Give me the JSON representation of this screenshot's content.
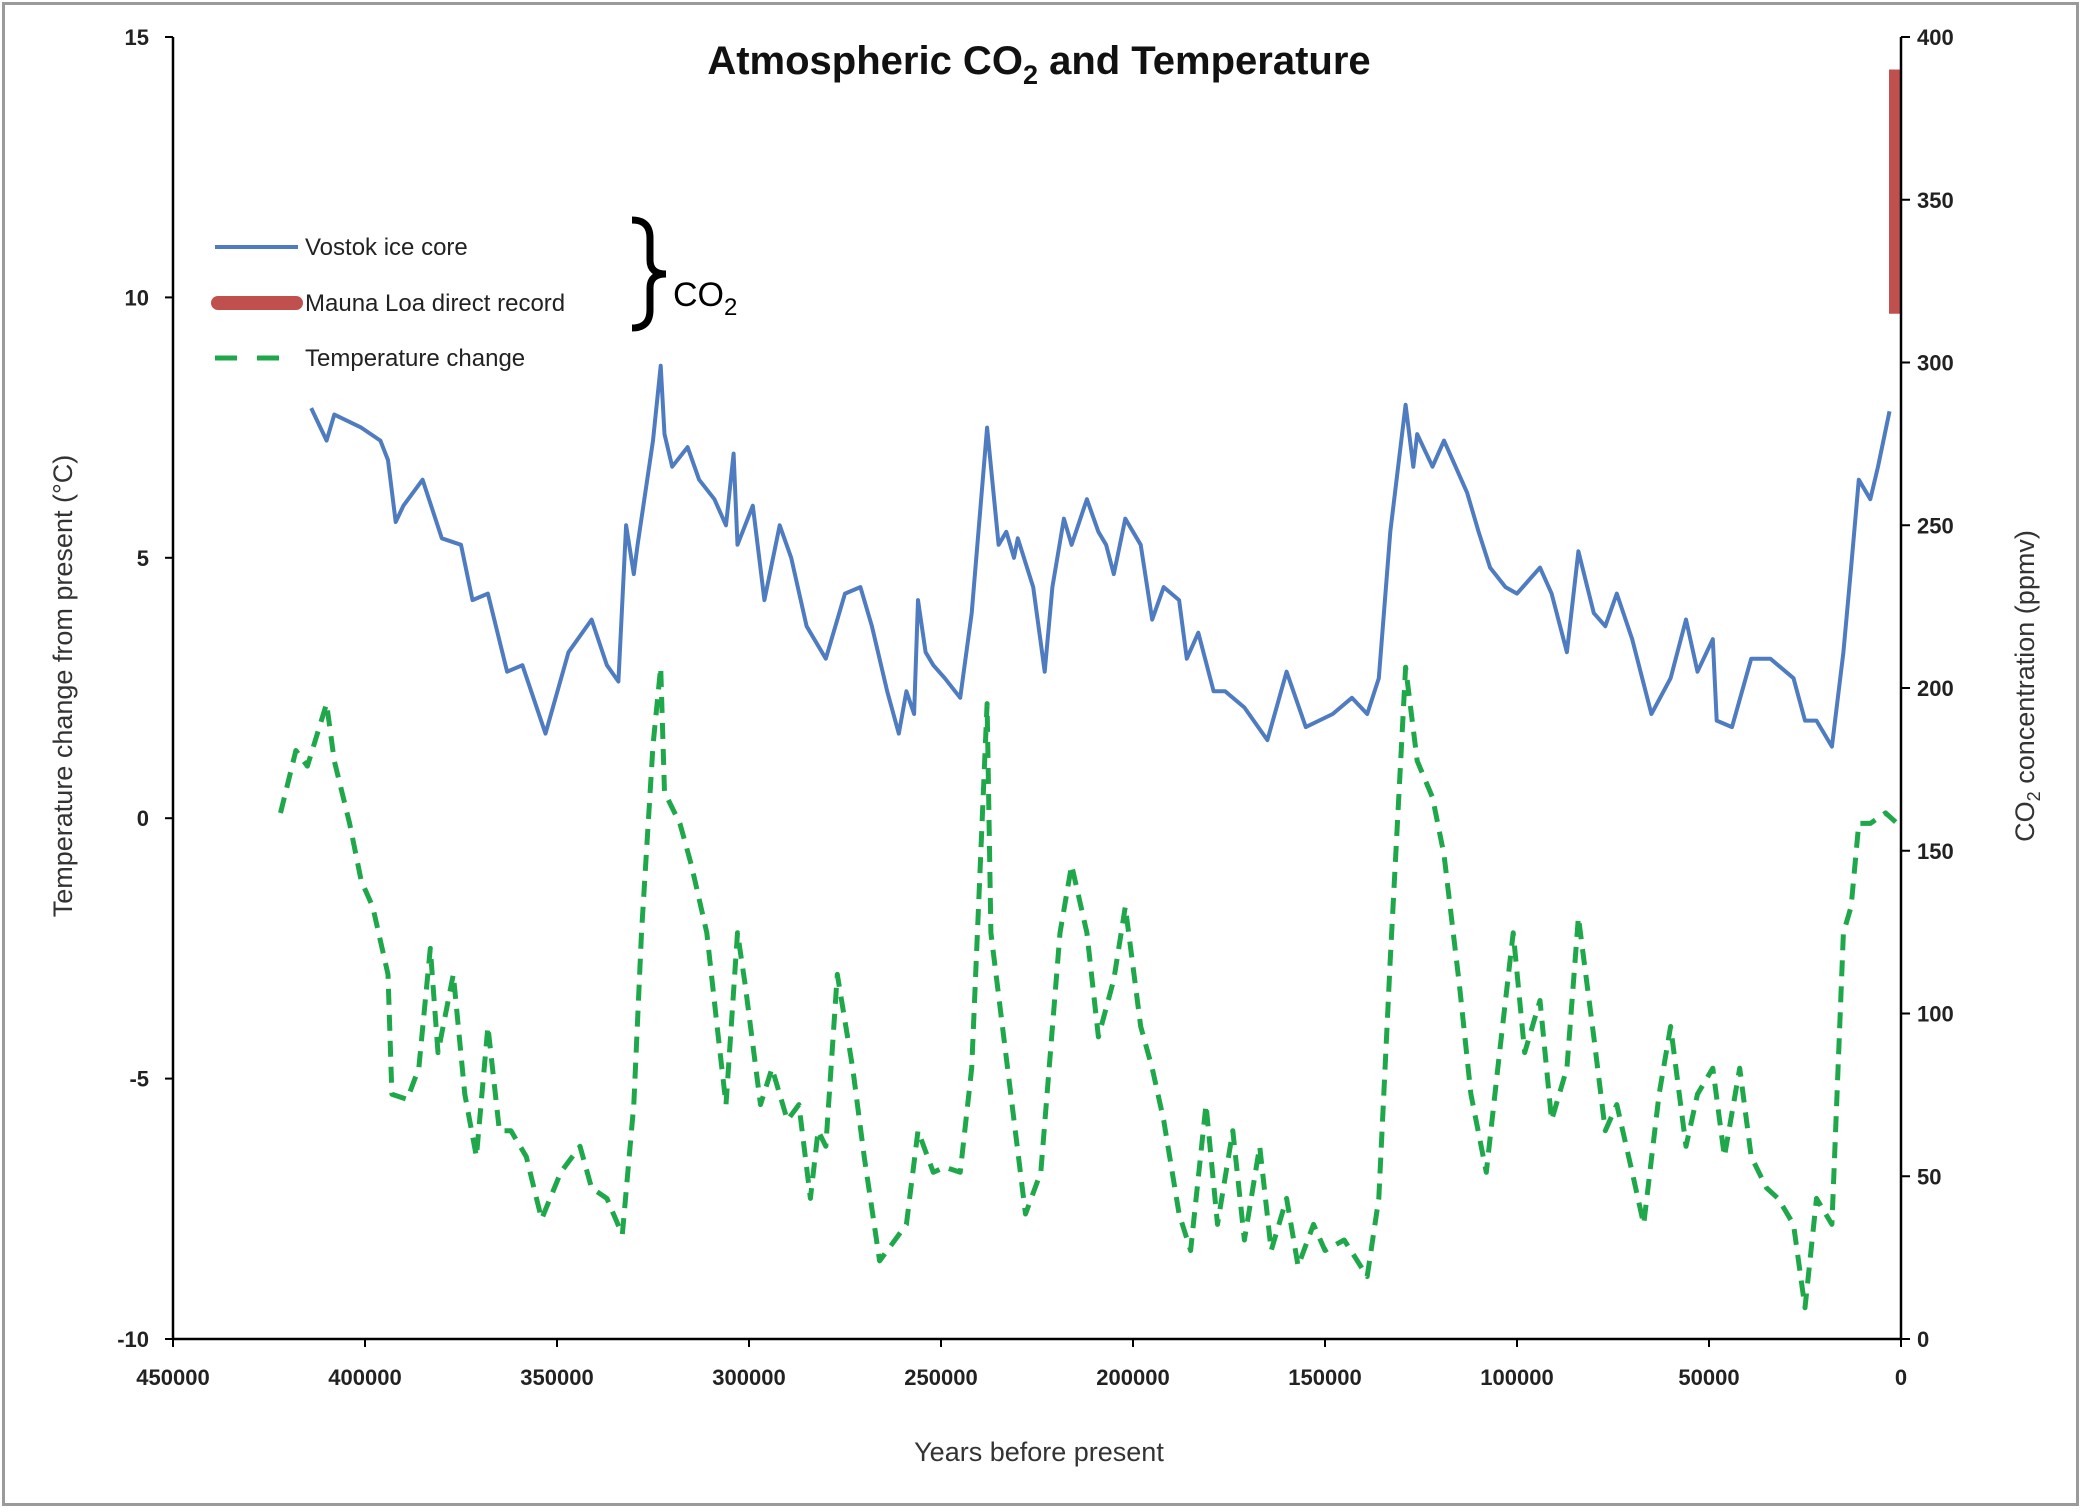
{
  "chart_data": {
    "type": "line",
    "title": "Atmospheric CO2 and Temperature",
    "title_main": "Atmospheric CO",
    "title_sub": "2",
    "title_rest": " and Temperature",
    "xlabel": "Years before present",
    "ylabel_left": "Temperature change from present (°C)",
    "ylabel_right": "CO2 concentration (ppmv)",
    "ylabel_right_parts": [
      "CO",
      "2",
      " concentration (ppmv)"
    ],
    "xlim": [
      450000,
      0
    ],
    "x_reversed": true,
    "ylim_left": [
      -10,
      15
    ],
    "ylim_right": [
      0,
      400
    ],
    "x_ticks": [
      "450000",
      "400000",
      "350000",
      "300000",
      "250000",
      "200000",
      "150000",
      "100000",
      "50000",
      "0"
    ],
    "y_left_ticks": [
      "-10",
      "-5",
      "0",
      "5",
      "10",
      "15"
    ],
    "y_right_ticks": [
      "0",
      "50",
      "100",
      "150",
      "200",
      "250",
      "300",
      "350",
      "400"
    ],
    "grid": false,
    "legend_placement": "top-left",
    "brace_label": [
      "CO",
      "2"
    ],
    "series": [
      {
        "name": "Vostok ice core",
        "axis": "right",
        "color": "#4f7cc0",
        "style": "solid",
        "x": [
          414000,
          410000,
          408000,
          401000,
          396000,
          394000,
          392000,
          390000,
          385000,
          380000,
          375000,
          372000,
          368000,
          363000,
          359000,
          353000,
          347000,
          341000,
          337000,
          334000,
          332000,
          330000,
          329000,
          325000,
          323000,
          322000,
          320000,
          316000,
          313000,
          309000,
          306000,
          304000,
          303000,
          299000,
          296000,
          292000,
          289000,
          285000,
          280000,
          275000,
          271000,
          268000,
          264000,
          261000,
          259000,
          257000,
          256000,
          254000,
          252000,
          249000,
          245000,
          242000,
          238000,
          235000,
          233000,
          231000,
          230000,
          226000,
          223000,
          221000,
          218000,
          216000,
          212000,
          209000,
          207000,
          205000,
          202000,
          198000,
          195000,
          192000,
          188000,
          186000,
          183000,
          179000,
          176000,
          171000,
          165000,
          160000,
          155000,
          148000,
          143000,
          139000,
          136000,
          133000,
          129000,
          127000,
          126000,
          122000,
          119000,
          113000,
          110000,
          107000,
          103000,
          100000,
          94000,
          91000,
          87000,
          84000,
          80000,
          77000,
          74000,
          70000,
          65000,
          60000,
          56000,
          53000,
          49000,
          48000,
          44000,
          39000,
          34000,
          28000,
          25000,
          22000,
          18000,
          15000,
          13000,
          11000,
          8000,
          6000,
          3000
        ],
        "y": [
          286,
          276,
          284,
          280,
          276,
          270,
          251,
          256,
          264,
          246,
          244,
          227,
          229,
          205,
          207,
          186,
          211,
          221,
          207,
          202,
          250,
          235,
          244,
          276,
          299,
          278,
          268,
          274,
          264,
          258,
          250,
          272,
          244,
          256,
          227,
          250,
          240,
          219,
          209,
          229,
          231,
          219,
          199,
          186,
          199,
          192,
          227,
          211,
          207,
          203,
          197,
          223,
          280,
          244,
          248,
          240,
          246,
          231,
          205,
          231,
          252,
          244,
          258,
          248,
          244,
          235,
          252,
          244,
          221,
          231,
          227,
          209,
          217,
          199,
          199,
          194,
          184,
          205,
          188,
          192,
          197,
          192,
          203,
          248,
          287,
          268,
          278,
          268,
          276,
          260,
          248,
          237,
          231,
          229,
          237,
          229,
          211,
          242,
          223,
          219,
          229,
          215,
          192,
          203,
          221,
          205,
          215,
          190,
          188,
          209,
          209,
          203,
          190,
          190,
          182,
          211,
          237,
          264,
          258,
          268,
          285
        ]
      },
      {
        "name": "Mauna Loa direct record",
        "axis": "right",
        "color": "#c0504d",
        "style": "thick",
        "x": [
          0,
          0
        ],
        "y": [
          315,
          390
        ]
      },
      {
        "name": "Temperature change",
        "axis": "left",
        "color": "#1fa84a",
        "style": "dashed",
        "x": [
          422000,
          418000,
          415000,
          410000,
          408000,
          404000,
          401000,
          398000,
          394000,
          393000,
          389000,
          386000,
          383000,
          381000,
          377000,
          374000,
          371000,
          368000,
          365000,
          362000,
          358000,
          354000,
          349000,
          344000,
          341000,
          337000,
          333000,
          330000,
          328000,
          325000,
          323000,
          322000,
          318000,
          315000,
          311000,
          308000,
          306000,
          303000,
          301000,
          297000,
          294000,
          290000,
          287000,
          284000,
          282000,
          280000,
          277000,
          273000,
          270000,
          266000,
          263000,
          259000,
          256000,
          252000,
          249000,
          245000,
          242000,
          238000,
          237000,
          231000,
          228000,
          224000,
          219000,
          216000,
          212000,
          209000,
          205000,
          202000,
          198000,
          195000,
          192000,
          188000,
          185000,
          181000,
          178000,
          174000,
          171000,
          167000,
          164000,
          160000,
          157000,
          153000,
          150000,
          145000,
          139000,
          136000,
          133000,
          129000,
          126000,
          122000,
          119000,
          115000,
          112000,
          108000,
          105000,
          101000,
          98000,
          94000,
          91000,
          87000,
          84000,
          80000,
          77000,
          74000,
          70000,
          67000,
          63000,
          60000,
          56000,
          53000,
          49000,
          46000,
          42000,
          39000,
          35000,
          32000,
          28000,
          25000,
          22000,
          18000,
          15000,
          13000,
          11000,
          8000,
          4000,
          1000
        ],
        "y": [
          0.1,
          1.3,
          1.0,
          2.2,
          1.1,
          -0.1,
          -1.2,
          -1.7,
          -3.0,
          -5.3,
          -5.4,
          -4.8,
          -2.5,
          -4.5,
          -3.0,
          -5.3,
          -6.5,
          -4.0,
          -6.0,
          -6.0,
          -6.5,
          -7.7,
          -6.8,
          -6.3,
          -7.1,
          -7.3,
          -8.0,
          -5.5,
          -2.2,
          1.4,
          2.9,
          0.5,
          -0.1,
          -0.9,
          -2.2,
          -4.2,
          -5.5,
          -2.2,
          -3.2,
          -5.5,
          -4.8,
          -5.8,
          -5.5,
          -7.3,
          -6.0,
          -6.3,
          -3.0,
          -4.8,
          -6.5,
          -8.5,
          -8.2,
          -7.8,
          -6.0,
          -6.8,
          -6.7,
          -6.8,
          -4.8,
          2.2,
          -2.2,
          -5.8,
          -7.6,
          -6.8,
          -2.2,
          -0.9,
          -2.2,
          -4.2,
          -3.1,
          -1.7,
          -4.0,
          -4.8,
          -5.8,
          -7.6,
          -8.3,
          -5.5,
          -7.8,
          -6.0,
          -8.1,
          -6.3,
          -8.3,
          -7.3,
          -8.6,
          -7.8,
          -8.3,
          -8.1,
          -8.8,
          -7.3,
          -2.7,
          2.9,
          1.1,
          0.4,
          -0.7,
          -3.2,
          -5.3,
          -6.8,
          -4.8,
          -2.2,
          -4.5,
          -3.5,
          -5.8,
          -4.8,
          -1.9,
          -4.2,
          -6.0,
          -5.5,
          -6.8,
          -7.8,
          -5.3,
          -4.0,
          -6.3,
          -5.3,
          -4.8,
          -6.5,
          -4.8,
          -6.5,
          -7.1,
          -7.3,
          -7.8,
          -9.4,
          -7.3,
          -7.8,
          -2.2,
          -1.7,
          -0.1,
          -0.1,
          0.1,
          -0.1
        ]
      }
    ]
  }
}
